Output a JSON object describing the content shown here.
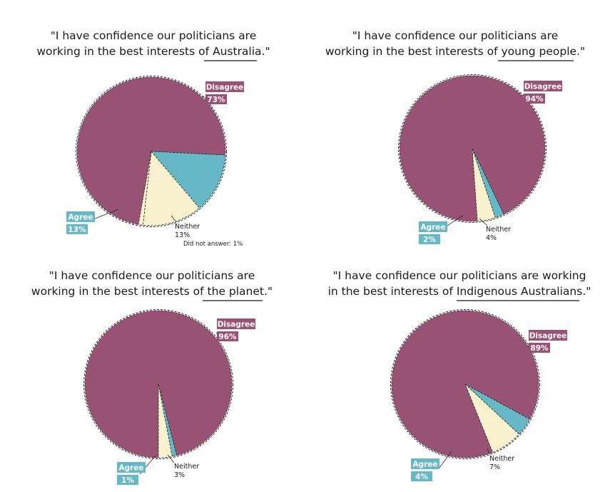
{
  "colors": {
    "disagree": "#985273",
    "agree": "#67b8c6",
    "neither": "#faf2cf",
    "label_text": "#ffffff",
    "text": "#1a1a1a"
  },
  "chart_data": [
    {
      "type": "pie",
      "title_lines": [
        "\"I have confidence our politicians are",
        "working in the best interests of "
      ],
      "title_emphasis": "Australia.",
      "title_tail": "\"",
      "slices": [
        {
          "name": "Disagree",
          "label": "73%",
          "value": 73
        },
        {
          "name": "Agree",
          "label": "13%",
          "value": 13
        },
        {
          "name": "Neither",
          "label": "13%",
          "value": 13
        },
        {
          "name": "Did not answer",
          "label": "1%",
          "value": 1
        }
      ],
      "note": "Did not answer: 1%"
    },
    {
      "type": "pie",
      "title_lines": [
        "\"I have confidence our politicians are",
        "working in the best interests of "
      ],
      "title_emphasis": "young people.",
      "title_tail": "\"",
      "slices": [
        {
          "name": "Disagree",
          "label": "94%",
          "value": 94
        },
        {
          "name": "Agree",
          "label": "2%",
          "value": 2
        },
        {
          "name": "Neither",
          "label": "4%",
          "value": 4
        }
      ]
    },
    {
      "type": "pie",
      "title_lines": [
        "\"I have confidence our politicians are",
        "working in the best interests of "
      ],
      "title_emphasis": "the planet.",
      "title_tail": "\"",
      "slices": [
        {
          "name": "Disagree",
          "label": "96%",
          "value": 96
        },
        {
          "name": "Agree",
          "label": "1%",
          "value": 1
        },
        {
          "name": "Neither",
          "label": "3%",
          "value": 3
        }
      ]
    },
    {
      "type": "pie",
      "title_lines": [
        "\"I have confidence our politicians are working",
        "in the best interests of "
      ],
      "title_emphasis": "Indigenous Australians.",
      "title_tail": "\"",
      "slices": [
        {
          "name": "Disagree",
          "label": "89%",
          "value": 89
        },
        {
          "name": "Agree",
          "label": "4%",
          "value": 4
        },
        {
          "name": "Neither",
          "label": "7%",
          "value": 7
        }
      ]
    }
  ]
}
